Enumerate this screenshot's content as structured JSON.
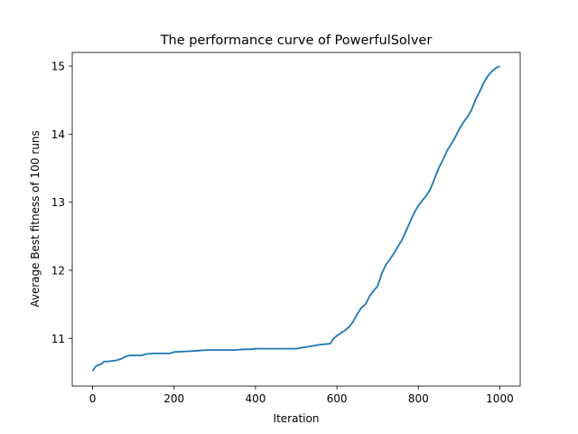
{
  "chart_data": {
    "type": "line",
    "title": "The performance curve of PowerfulSolver",
    "xlabel": "Iteration",
    "ylabel": "Average Best fitness of 100 runs",
    "xlim": [
      -50,
      1050
    ],
    "ylim": [
      10.3,
      15.2
    ],
    "x_ticks": [
      0,
      200,
      400,
      600,
      800,
      1000
    ],
    "y_ticks": [
      11,
      12,
      13,
      14,
      15
    ],
    "x_tick_labels": [
      "0",
      "200",
      "400",
      "600",
      "800",
      "1000"
    ],
    "y_tick_labels": [
      "11",
      "12",
      "13",
      "14",
      "15"
    ],
    "grid": false,
    "legend": "none",
    "series": [
      {
        "color": "#1f77b4",
        "x": [
          0,
          5,
          10,
          20,
          28,
          35,
          60,
          70,
          80,
          90,
          120,
          130,
          150,
          190,
          200,
          230,
          260,
          280,
          300,
          350,
          370,
          390,
          400,
          450,
          500,
          510,
          520,
          540,
          560,
          580,
          585,
          590,
          600,
          610,
          620,
          630,
          640,
          650,
          660,
          670,
          680,
          690,
          700,
          710,
          720,
          730,
          740,
          750,
          760,
          770,
          780,
          790,
          800,
          810,
          820,
          830,
          840,
          850,
          860,
          870,
          880,
          890,
          900,
          910,
          920,
          930,
          940,
          950,
          960,
          970,
          980,
          990,
          1000
        ],
        "y": [
          10.52,
          10.57,
          10.6,
          10.62,
          10.66,
          10.66,
          10.68,
          10.7,
          10.73,
          10.75,
          10.75,
          10.77,
          10.78,
          10.78,
          10.8,
          10.81,
          10.82,
          10.83,
          10.83,
          10.83,
          10.84,
          10.84,
          10.85,
          10.85,
          10.85,
          10.86,
          10.87,
          10.89,
          10.91,
          10.92,
          10.93,
          10.99,
          11.04,
          11.08,
          11.12,
          11.17,
          11.25,
          11.36,
          11.45,
          11.5,
          11.62,
          11.7,
          11.77,
          11.95,
          12.08,
          12.16,
          12.25,
          12.35,
          12.45,
          12.58,
          12.72,
          12.85,
          12.95,
          13.03,
          13.1,
          13.2,
          13.35,
          13.5,
          13.62,
          13.75,
          13.85,
          13.95,
          14.07,
          14.17,
          14.25,
          14.35,
          14.5,
          14.62,
          14.75,
          14.85,
          14.92,
          14.97,
          15.0
        ]
      }
    ]
  }
}
